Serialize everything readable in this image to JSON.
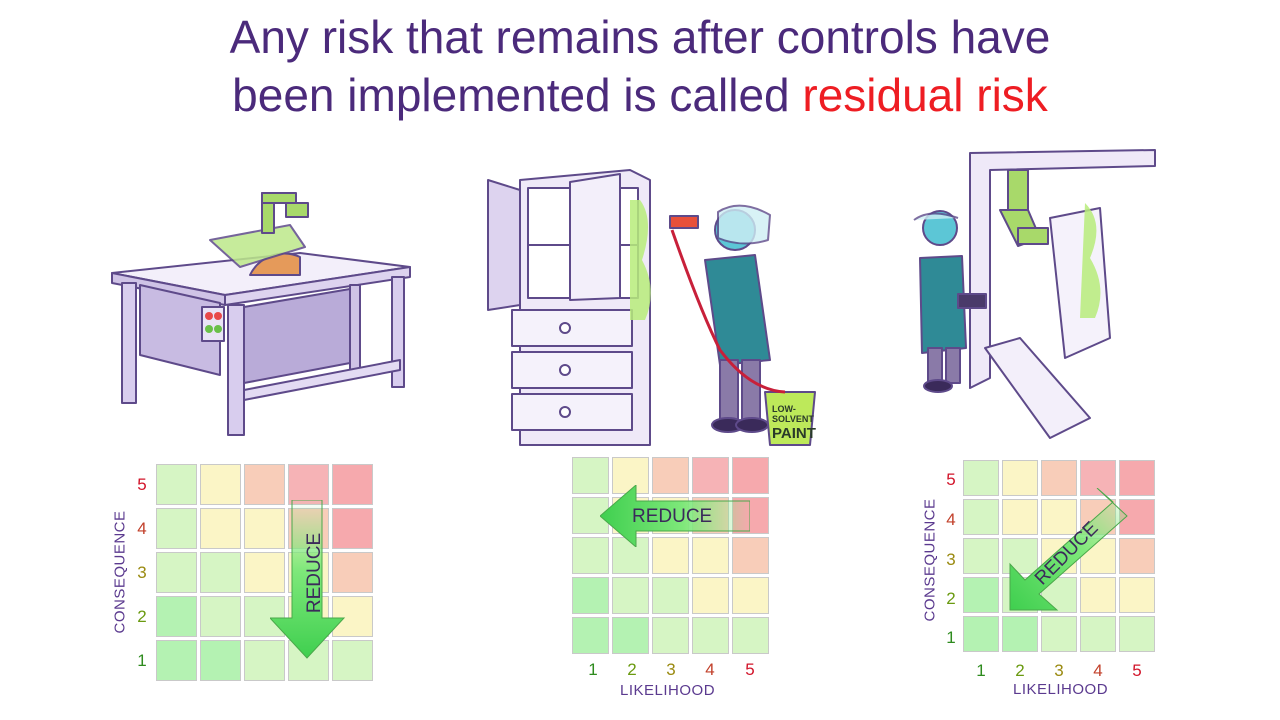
{
  "title": {
    "line1": "Any risk that remains after controls have",
    "line2_prefix": "been implemented is called ",
    "line2_highlight": "residual risk"
  },
  "paint_bucket": {
    "line1": "LOW-",
    "line2": "SOLVENT",
    "line3": "PAINT"
  },
  "matrices": [
    {
      "y_label": "CONSEQUENCE",
      "y_ticks": [
        "5",
        "4",
        "3",
        "2",
        "1"
      ],
      "x_label": "",
      "x_ticks": [],
      "arrow_label": "REDUCE",
      "arrow_direction": "down"
    },
    {
      "y_label": "",
      "y_ticks": [],
      "x_label": "LIKELIHOOD",
      "x_ticks": [
        "1",
        "2",
        "3",
        "4",
        "5"
      ],
      "arrow_label": "REDUCE",
      "arrow_direction": "left"
    },
    {
      "y_label": "CONSEQUENCE",
      "y_ticks": [
        "5",
        "4",
        "3",
        "2",
        "1"
      ],
      "x_label": "LIKELIHOOD",
      "x_ticks": [
        "1",
        "2",
        "3",
        "4",
        "5"
      ],
      "arrow_label": "REDUCE",
      "arrow_direction": "down-left"
    }
  ],
  "grid_colors": [
    [
      "#d6f5c4",
      "#fbf5c6",
      "#f8cdb9",
      "#f6b3b6",
      "#f6a9ad"
    ],
    [
      "#d6f5c4",
      "#fbf5c6",
      "#fbf5c6",
      "#f8cdb9",
      "#f6a9ad"
    ],
    [
      "#d6f5c4",
      "#d6f5c4",
      "#fbf5c6",
      "#fbf5c6",
      "#f8cdb9"
    ],
    [
      "#b4f2b2",
      "#d6f5c4",
      "#d6f5c4",
      "#fbf5c6",
      "#fbf5c6"
    ],
    [
      "#b4f2b2",
      "#b4f2b2",
      "#d6f5c4",
      "#d6f5c4",
      "#d6f5c4"
    ]
  ],
  "tick_colors": [
    "#2e8b1e",
    "#6a9a10",
    "#9a8a10",
    "#c2402a",
    "#d2142a"
  ]
}
